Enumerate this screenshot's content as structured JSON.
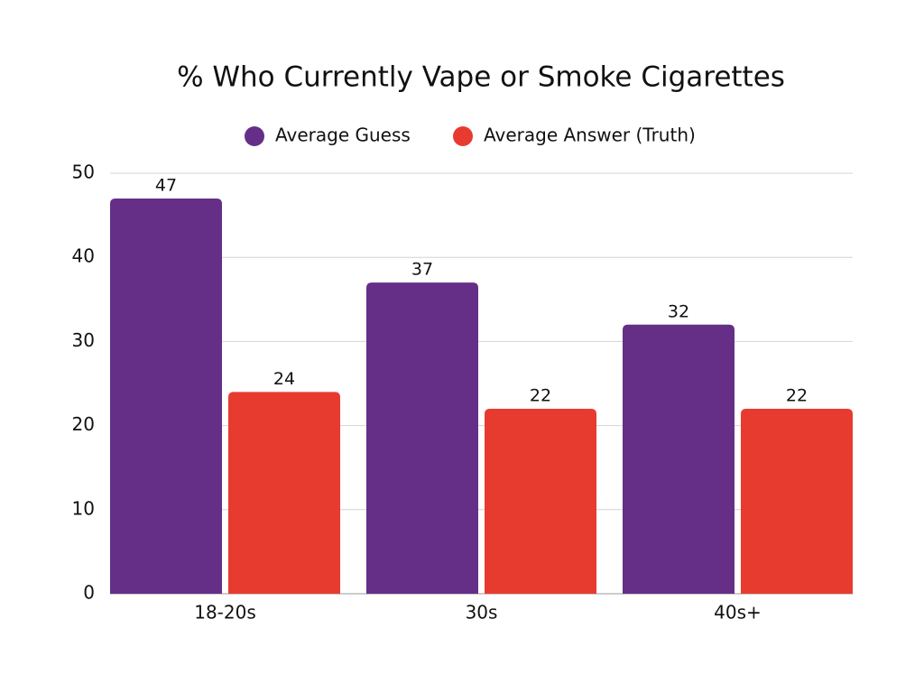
{
  "chart_data": {
    "type": "bar",
    "title": "% Who Currently Vape or Smoke Cigarettes",
    "categories": [
      "18-20s",
      "30s",
      "40s+"
    ],
    "series": [
      {
        "name": "Average Guess",
        "color": "#652f87",
        "values": [
          47,
          37,
          32
        ]
      },
      {
        "name": "Average Answer (Truth)",
        "color": "#e83b30",
        "values": [
          24,
          22,
          22
        ]
      }
    ],
    "ylim": [
      0,
      50
    ],
    "yticks": [
      0,
      10,
      20,
      30,
      40,
      50
    ],
    "grid": true
  }
}
